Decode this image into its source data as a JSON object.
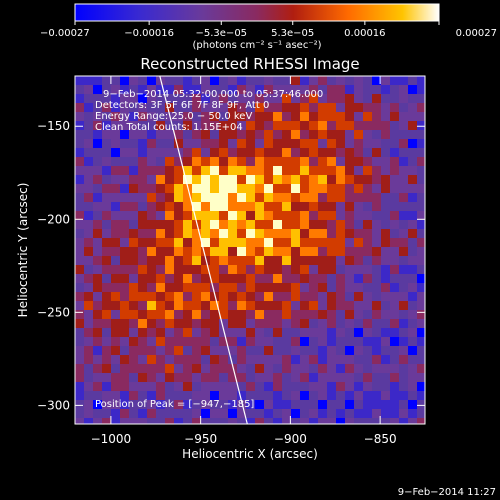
{
  "chart_data": {
    "type": "heatmap",
    "title": "Reconstructed RHESSI Image",
    "xlabel": "Heliocentric X (arcsec)",
    "ylabel": "Heliocentric Y (arcsec)",
    "xlim": [
      -1020,
      -825
    ],
    "ylim": [
      -310,
      -123
    ],
    "x_ticks": [
      -1000,
      -950,
      -900,
      -850
    ],
    "x_tick_labels": [
      "−1000",
      "−950",
      "−900",
      "−850"
    ],
    "y_ticks": [
      -150,
      -200,
      -250,
      -300
    ],
    "y_tick_labels": [
      "−150",
      "−200",
      "−250",
      "−300"
    ],
    "colorbar": {
      "min": -0.00027,
      "max": 0.00027,
      "tick_values": [
        -0.00027,
        -0.00016,
        -5.3e-05,
        5.3e-05,
        0.00016,
        0.00027
      ],
      "tick_labels": [
        "−0.00027",
        "−0.00016",
        "−5.3e−05",
        "5.3e−05",
        "0.00016",
        "0.00027"
      ],
      "unit_label": "(photons cm⁻² s⁻¹ asec⁻²)"
    },
    "info_lines": [
      "9−Feb−2014 05:32:00.000 to 05:37:46.000",
      "Detectors: 3F 5F 6F 7F 8F 9F, Att 0",
      "Energy Range: 25.0 − 50.0 keV",
      "Clean     Total counts: 1.15E+04"
    ],
    "peak_text": "Position of Peak = [−947,−185]",
    "peak": [
      -947,
      -185
    ],
    "limb": [
      [
        -973,
        -122
      ],
      [
        -924,
        -310
      ]
    ],
    "grid": false,
    "timestamp": "9−Feb−2014 11:27",
    "colormap": [
      "#0000ff",
      "#3c28c8",
      "#5a3aa0",
      "#6a3a9a",
      "#8a2a60",
      "#a01e18",
      "#d23c00",
      "#ff7a00",
      "#ffc000",
      "#ffffc8"
    ]
  }
}
